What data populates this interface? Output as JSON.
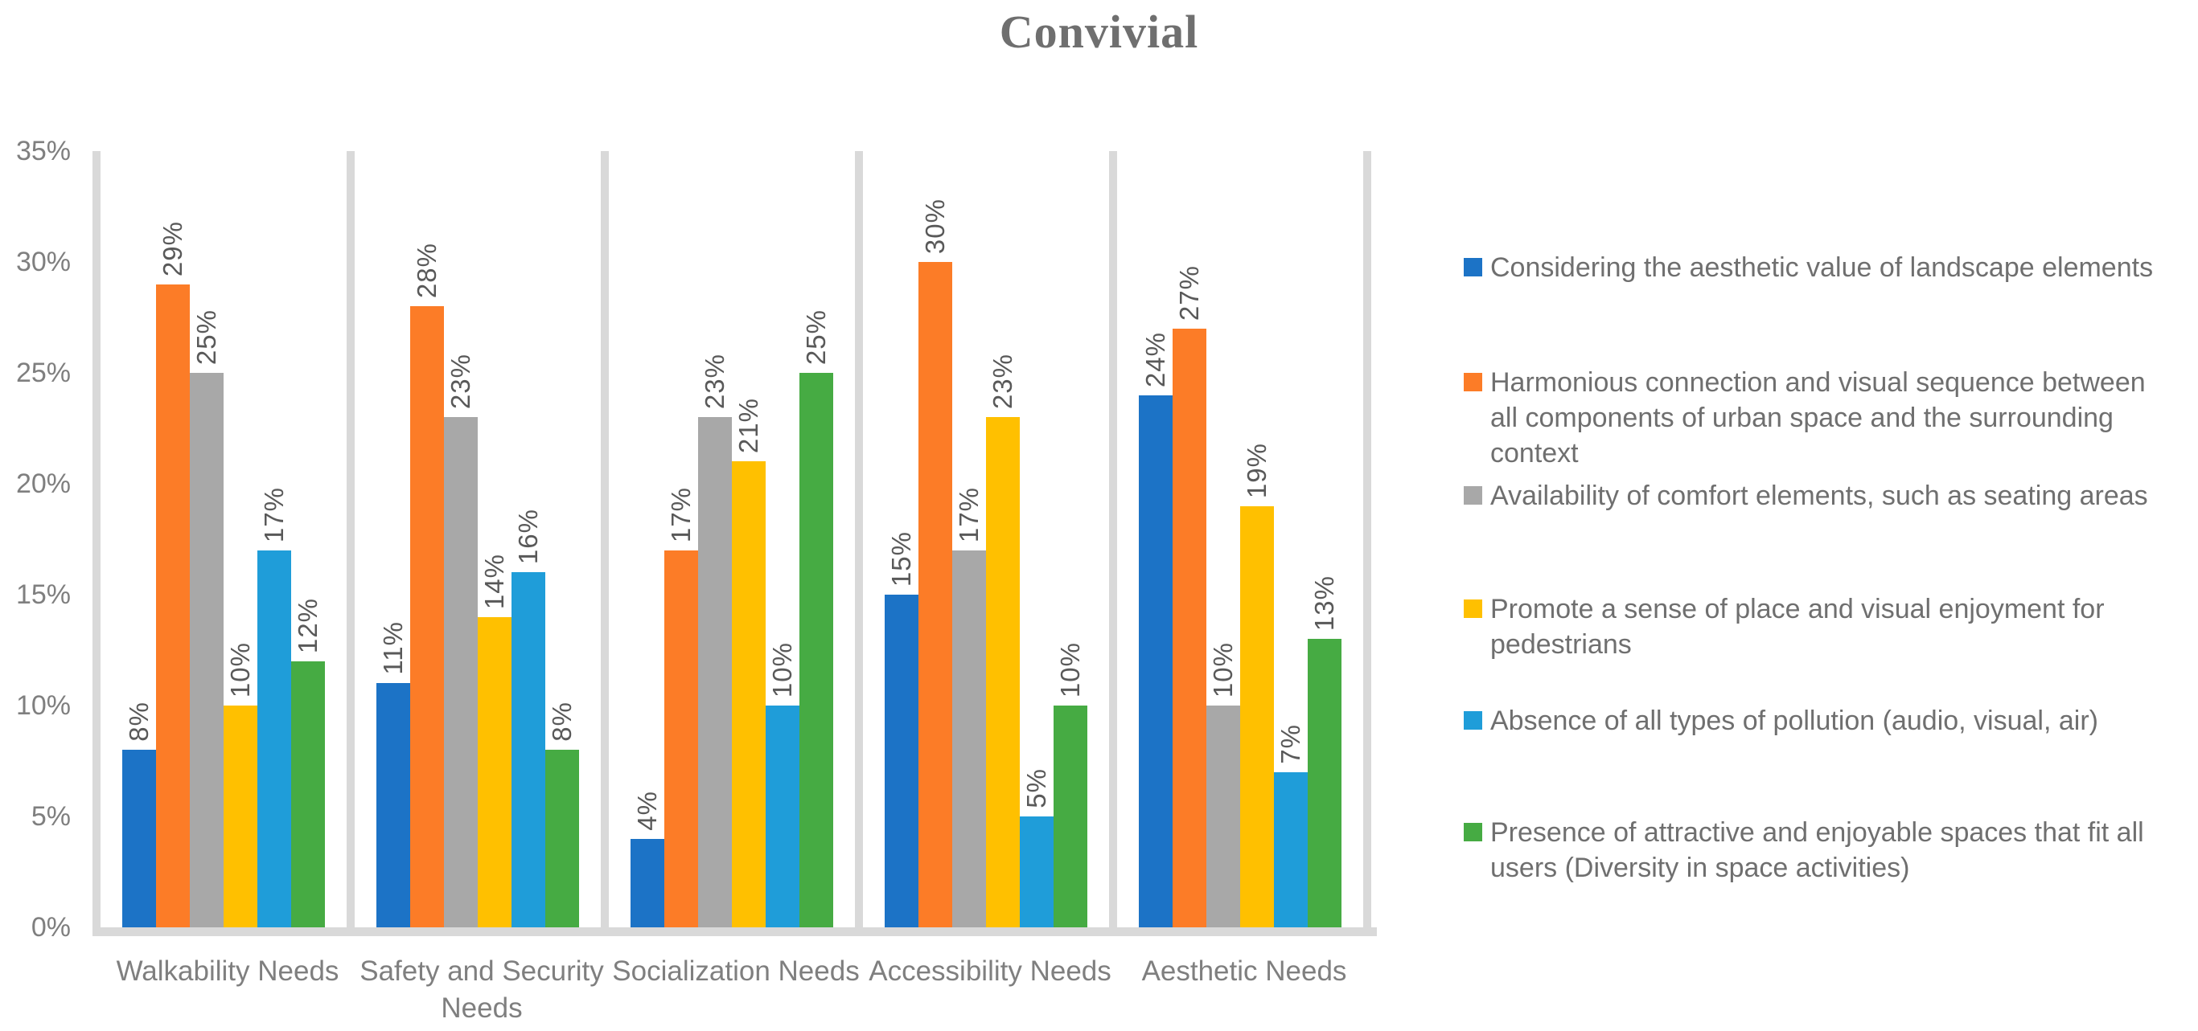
{
  "title": "Convivial",
  "chart_data": {
    "type": "bar",
    "title": "Convivial",
    "categories": [
      "Walkability Needs",
      "Safety and Security Needs",
      "Socialization Needs",
      "Accessibility Needs",
      "Aesthetic Needs"
    ],
    "series": [
      {
        "name": "Considering the aesthetic value of landscape elements",
        "color": "#1C73C6",
        "values": [
          8,
          11,
          4,
          15,
          24
        ]
      },
      {
        "name": "Harmonious connection and visual sequence between all components of urban space and the surrounding context",
        "color": "#FC7C27",
        "values": [
          29,
          28,
          17,
          30,
          27
        ]
      },
      {
        "name": "Availability of comfort elements, such as seating areas",
        "color": "#A8A8A8",
        "values": [
          25,
          23,
          23,
          17,
          10
        ]
      },
      {
        "name": "Promote a sense of place and visual enjoyment for pedestrians",
        "color": "#FFC000",
        "values": [
          10,
          14,
          21,
          23,
          19
        ]
      },
      {
        "name": "Absence of all types of pollution (audio, visual, air)",
        "color": "#1F9DD9",
        "values": [
          17,
          16,
          10,
          5,
          7
        ]
      },
      {
        "name": "Presence of attractive and enjoyable spaces that fit all users (Diversity in space activities)",
        "color": "#46AB43",
        "values": [
          12,
          8,
          25,
          10,
          13
        ]
      }
    ],
    "y_axis": {
      "ticks": [
        "0%",
        "5%",
        "10%",
        "15%",
        "20%",
        "25%",
        "30%",
        "35%"
      ],
      "min": 0,
      "max": 35,
      "step": 5
    },
    "data_label_format": "{value}%",
    "data_label_rotation": "rotate-up-90",
    "legend_position": "right",
    "grid": "vertical-category-separators-only",
    "colors": {
      "separator_band": "#D9D9D9",
      "axis_text": "#7F7F7F",
      "data_label_text": "#595959",
      "legend_text": "#6F6F6F",
      "title_text": "#6F6F6F",
      "background": "#FFFFFF"
    }
  }
}
